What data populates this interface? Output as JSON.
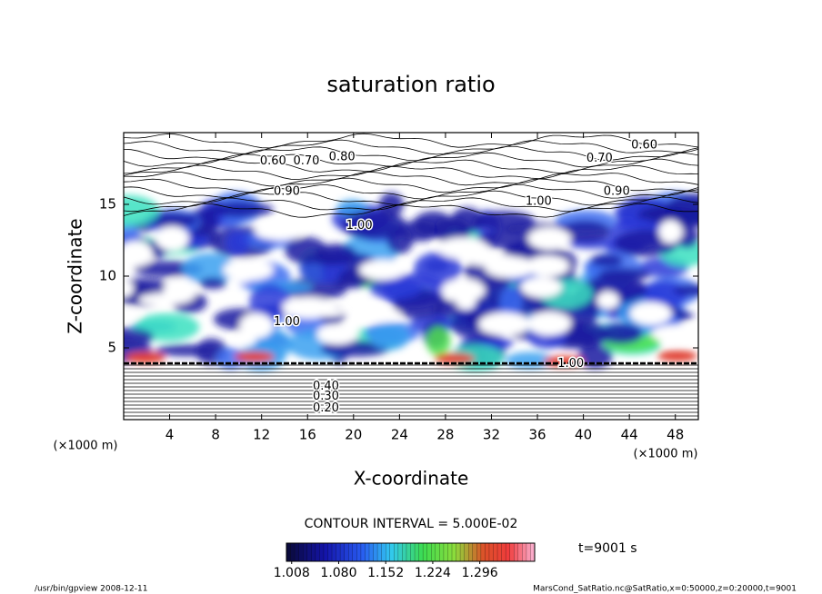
{
  "chart_data": {
    "type": "contour",
    "title": "saturation ratio",
    "x_label": "X-coordinate",
    "y_label": "Z-coordinate",
    "x_unit": "(×1000 m)",
    "y_unit": "(×1000 m)",
    "xlim": [
      0,
      50
    ],
    "xticks": [
      4,
      8,
      12,
      16,
      20,
      24,
      28,
      32,
      36,
      40,
      44,
      48
    ],
    "ylim": [
      0,
      20
    ],
    "yticks": [
      5,
      10,
      15
    ],
    "contour_interval": "CONTOUR INTERVAL = 5.000E-02",
    "time_label": "t=9001 s",
    "colorbar_lim": [
      1.0,
      1.38
    ],
    "colorbar_ticks": [
      {
        "value": 1.008,
        "label": "1.008"
      },
      {
        "value": 1.08,
        "label": "1.080"
      },
      {
        "value": 1.152,
        "label": "1.152"
      },
      {
        "value": 1.224,
        "label": "1.224"
      },
      {
        "value": 1.296,
        "label": "1.296"
      }
    ],
    "contour_labels": [
      {
        "text": "0.60",
        "x": 45.3,
        "y": 19.1
      },
      {
        "text": "0.70",
        "x": 41.4,
        "y": 18.2
      },
      {
        "text": "0.90",
        "x": 42.9,
        "y": 15.9
      },
      {
        "text": "1.00",
        "x": 36.1,
        "y": 15.2
      },
      {
        "text": "0.60",
        "x": 13.0,
        "y": 18.0
      },
      {
        "text": "0.70",
        "x": 15.9,
        "y": 18.0
      },
      {
        "text": "0.80",
        "x": 19.0,
        "y": 18.3
      },
      {
        "text": "0.90",
        "x": 14.2,
        "y": 15.9
      },
      {
        "text": "1.00",
        "x": 20.5,
        "y": 13.5
      },
      {
        "text": "1.00",
        "x": 14.2,
        "y": 6.8
      },
      {
        "text": "1.00",
        "x": 38.9,
        "y": 3.9
      },
      {
        "text": "0.40",
        "x": 17.6,
        "y": 2.3
      },
      {
        "text": "0.30",
        "x": 17.6,
        "y": 1.6
      },
      {
        "text": "0.20",
        "x": 17.6,
        "y": 0.8
      }
    ],
    "footer_left": "/usr/bin/gpview  2008-12-11",
    "footer_right": "MarsCond_SatRatio.nc@SatRatio,x=0:50000,z=0:20000,t=9001"
  }
}
